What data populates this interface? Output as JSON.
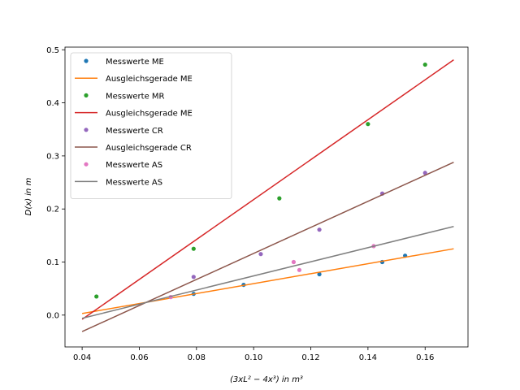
{
  "chart_data": {
    "type": "scatter",
    "xlabel": "(3xL² − 4x³) in m³",
    "ylabel": "D(x) in m",
    "xlim": [
      0.034,
      0.175
    ],
    "ylim": [
      -0.06,
      0.505
    ],
    "xticks": [
      0.04,
      0.06,
      0.08,
      0.1,
      0.12,
      0.14,
      0.16
    ],
    "xtick_labels": [
      "0.04",
      "0.06",
      "0.08",
      "0.10",
      "0.12",
      "0.14",
      "0.16"
    ],
    "yticks": [
      0.0,
      0.1,
      0.2,
      0.3,
      0.4,
      0.5
    ],
    "ytick_labels": [
      "0.0",
      "0.1",
      "0.2",
      "0.3",
      "0.4",
      "0.5"
    ],
    "legend_position": "top-left",
    "grid": false,
    "series": [
      {
        "name": "Messwerte ME",
        "kind": "points",
        "color": "#1f77b4",
        "x": [
          0.079,
          0.0965,
          0.123,
          0.145,
          0.153
        ],
        "y": [
          0.04,
          0.057,
          0.077,
          0.1,
          0.112
        ]
      },
      {
        "name": "Ausgleichsgerade ME",
        "kind": "line",
        "color": "#ff7f0e",
        "x": [
          0.04,
          0.17
        ],
        "y": [
          0.003,
          0.125
        ]
      },
      {
        "name": "Messwerte MR",
        "kind": "points",
        "color": "#2ca02c",
        "x": [
          0.045,
          0.079,
          0.109,
          0.14,
          0.16
        ],
        "y": [
          0.035,
          0.125,
          0.22,
          0.36,
          0.472
        ]
      },
      {
        "name": "Ausgleichsgerade ME",
        "kind": "line",
        "color": "#d62728",
        "x": [
          0.04,
          0.17
        ],
        "y": [
          -0.008,
          0.481
        ]
      },
      {
        "name": "Messwerte CR",
        "kind": "points",
        "color": "#9467bd",
        "x": [
          0.079,
          0.1025,
          0.123,
          0.145,
          0.16
        ],
        "y": [
          0.072,
          0.115,
          0.161,
          0.229,
          0.268
        ]
      },
      {
        "name": "Ausgleichsgerade CR",
        "kind": "line",
        "color": "#8c564b",
        "x": [
          0.04,
          0.17
        ],
        "y": [
          -0.031,
          0.288
        ]
      },
      {
        "name": "Messwerte AS",
        "kind": "points",
        "color": "#e377c2",
        "x": [
          0.071,
          0.114,
          0.116,
          0.142
        ],
        "y": [
          0.034,
          0.1,
          0.085,
          0.13
        ]
      },
      {
        "name": "Messwerte AS",
        "kind": "line",
        "color": "#7f7f7f",
        "x": [
          0.04,
          0.17
        ],
        "y": [
          -0.006,
          0.167
        ]
      }
    ]
  }
}
